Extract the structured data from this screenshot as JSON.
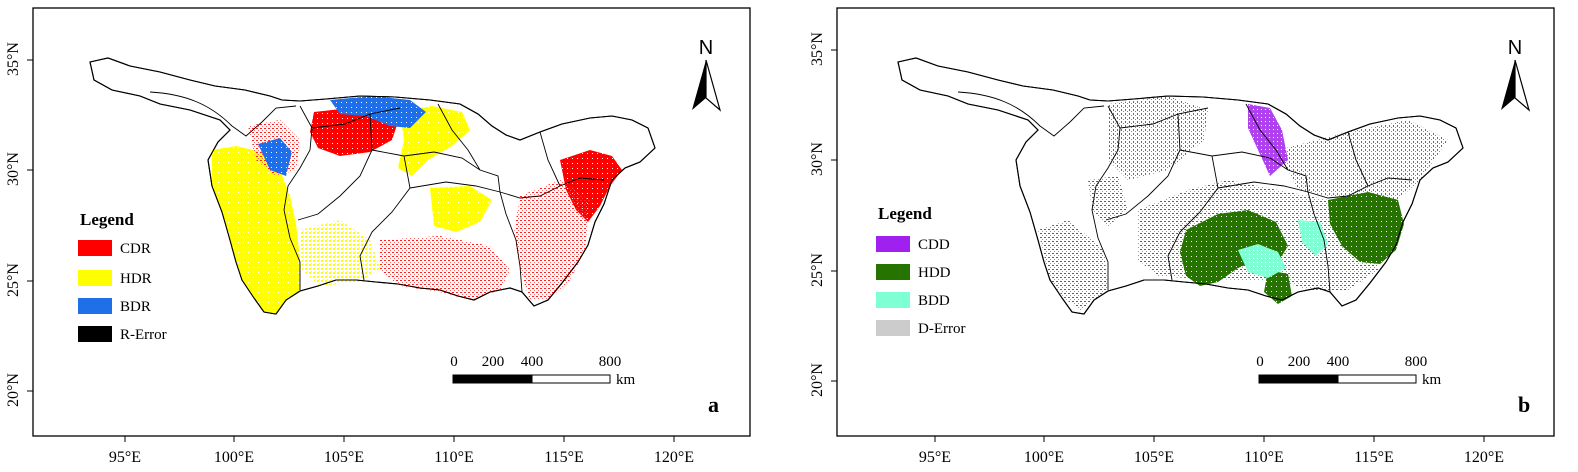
{
  "panels": [
    {
      "id": "a",
      "letter": "a",
      "legend": {
        "title": "Legend",
        "items": [
          {
            "label": "CDR",
            "color": "#ff0000"
          },
          {
            "label": "HDR",
            "color": "#ffff00"
          },
          {
            "label": "BDR",
            "color": "#1e6fe8"
          },
          {
            "label": "R-Error",
            "color": "#000000"
          }
        ]
      },
      "lat_ticks": [
        "35°N",
        "30°N",
        "25°N",
        "20°N"
      ],
      "lon_ticks": [
        "95°E",
        "100°E",
        "105°E",
        "110°E",
        "115°E",
        "120°E"
      ],
      "north": "N",
      "scale": {
        "labels": [
          "0",
          "200",
          "400",
          "800"
        ],
        "unit": "km"
      }
    },
    {
      "id": "b",
      "letter": "b",
      "legend": {
        "title": "Legend",
        "items": [
          {
            "label": "CDD",
            "color": "#a020f0"
          },
          {
            "label": "HDD",
            "color": "#267300"
          },
          {
            "label": "BDD",
            "color": "#7fffd4"
          },
          {
            "label": "D-Error",
            "color": "#cccccc"
          }
        ]
      },
      "lat_ticks": [
        "35°N",
        "30°N",
        "25°N",
        "20°N"
      ],
      "lon_ticks": [
        "95°E",
        "100°E",
        "105°E",
        "110°E",
        "115°E",
        "120°E"
      ],
      "north": "N",
      "scale": {
        "labels": [
          "0",
          "200",
          "400",
          "800"
        ],
        "unit": "km"
      }
    }
  ]
}
